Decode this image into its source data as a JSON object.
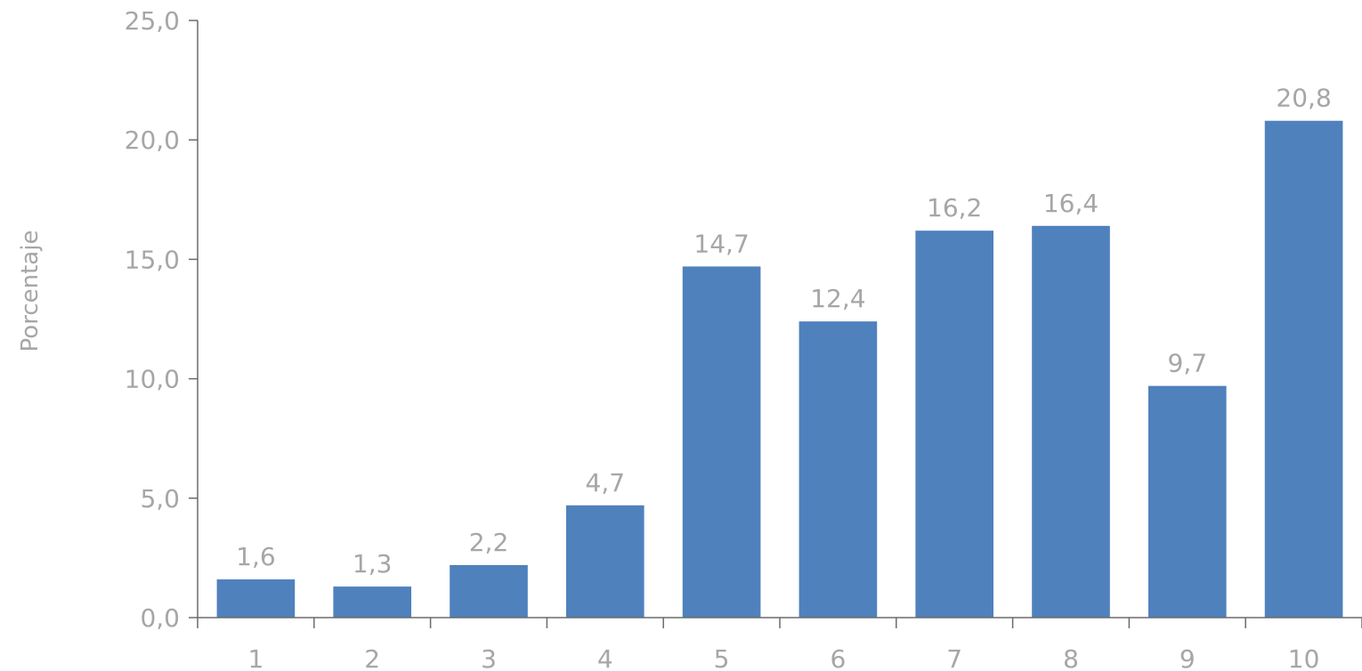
{
  "chart_data": {
    "type": "bar",
    "categories": [
      "1",
      "2",
      "3",
      "4",
      "5",
      "6",
      "7",
      "8",
      "9",
      "10"
    ],
    "values": [
      1.6,
      1.3,
      2.2,
      4.7,
      14.7,
      12.4,
      16.2,
      16.4,
      9.7,
      20.8
    ],
    "value_labels": [
      "1,6",
      "1,3",
      "2,2",
      "4,7",
      "14,7",
      "12,4",
      "16,2",
      "16,4",
      "9,7",
      "20,8"
    ],
    "title": "",
    "xlabel": "",
    "ylabel": "Porcentaje",
    "ylim": [
      0,
      25
    ],
    "yticks": [
      0,
      5,
      10,
      15,
      20,
      25
    ],
    "ytick_labels": [
      "0,0",
      "5,0",
      "10,0",
      "15,0",
      "20,0",
      "25,0"
    ],
    "grid": false,
    "bar_color": "#4f81bd",
    "text_color": "#a6a6a6",
    "axis_color": "#6b6b6b"
  }
}
